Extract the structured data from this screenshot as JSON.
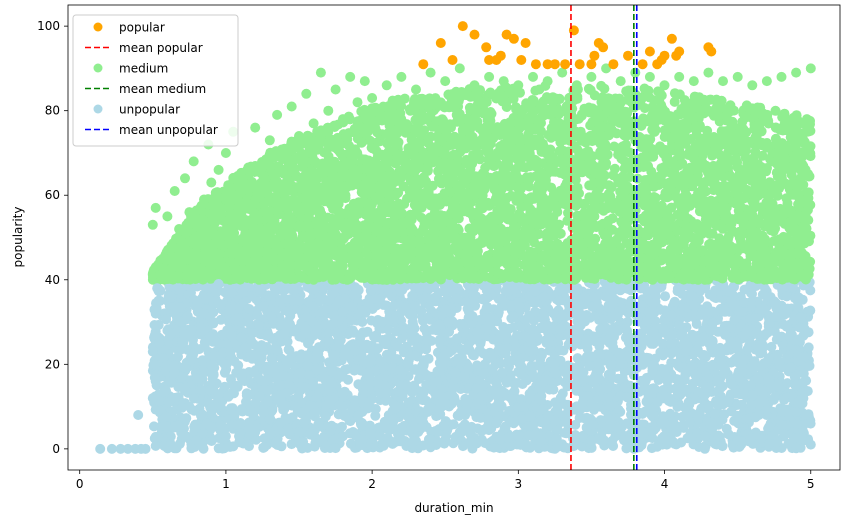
{
  "chart_data": {
    "type": "scatter",
    "xlabel": "duration_min",
    "ylabel": "popularity",
    "xlim": [
      -0.08,
      5.2
    ],
    "ylim": [
      -5,
      105
    ],
    "xticks": [
      "0",
      "1",
      "2",
      "3",
      "4",
      "5"
    ],
    "yticks": [
      "0",
      "20",
      "40",
      "60",
      "80",
      "100"
    ],
    "grid": false,
    "legend_position": "upper-left",
    "series": [
      {
        "name": "popular",
        "kind": "points",
        "color": "#ffa500",
        "points": [
          [
            2.35,
            91
          ],
          [
            2.47,
            96
          ],
          [
            2.55,
            92
          ],
          [
            2.62,
            100
          ],
          [
            2.7,
            98
          ],
          [
            2.78,
            95
          ],
          [
            2.8,
            92
          ],
          [
            2.85,
            92
          ],
          [
            2.88,
            93
          ],
          [
            2.92,
            98
          ],
          [
            2.97,
            97
          ],
          [
            3.02,
            92
          ],
          [
            3.05,
            96
          ],
          [
            3.12,
            91
          ],
          [
            3.2,
            91
          ],
          [
            3.25,
            91
          ],
          [
            3.32,
            91
          ],
          [
            3.38,
            99
          ],
          [
            3.42,
            91
          ],
          [
            3.5,
            91
          ],
          [
            3.52,
            93
          ],
          [
            3.55,
            96
          ],
          [
            3.58,
            95
          ],
          [
            3.65,
            91
          ],
          [
            3.75,
            93
          ],
          [
            3.85,
            91
          ],
          [
            3.9,
            94
          ],
          [
            3.95,
            91
          ],
          [
            3.98,
            92
          ],
          [
            4.0,
            93
          ],
          [
            4.05,
            97
          ],
          [
            4.08,
            93
          ],
          [
            4.1,
            94
          ],
          [
            4.3,
            95
          ],
          [
            4.32,
            94
          ]
        ]
      },
      {
        "name": "mean popular",
        "kind": "vline",
        "color": "#ff0000",
        "x": 3.36
      },
      {
        "name": "medium",
        "kind": "points",
        "color": "#90ee90",
        "points": [
          [
            0.5,
            53
          ],
          [
            0.52,
            57
          ],
          [
            0.55,
            41
          ],
          [
            0.58,
            45
          ],
          [
            0.6,
            55
          ],
          [
            0.62,
            47
          ],
          [
            0.65,
            61
          ],
          [
            0.68,
            52
          ],
          [
            0.7,
            43
          ],
          [
            0.72,
            64
          ],
          [
            0.75,
            56
          ],
          [
            0.78,
            68
          ],
          [
            0.8,
            48
          ],
          [
            0.85,
            59
          ],
          [
            0.88,
            72
          ],
          [
            0.9,
            63
          ],
          [
            0.95,
            66
          ],
          [
            0.98,
            54
          ],
          [
            1.0,
            70
          ],
          [
            1.05,
            75
          ],
          [
            1.1,
            62
          ],
          [
            1.15,
            58
          ],
          [
            1.2,
            76
          ],
          [
            1.25,
            67
          ],
          [
            1.3,
            73
          ],
          [
            1.35,
            79
          ],
          [
            1.4,
            65
          ],
          [
            1.45,
            81
          ],
          [
            1.5,
            74
          ],
          [
            1.55,
            84
          ],
          [
            1.6,
            77
          ],
          [
            1.65,
            89
          ],
          [
            1.7,
            80
          ],
          [
            1.75,
            85
          ],
          [
            1.8,
            78
          ],
          [
            1.85,
            88
          ],
          [
            1.9,
            82
          ],
          [
            1.95,
            87
          ],
          [
            2.0,
            83
          ],
          [
            2.1,
            86
          ],
          [
            2.2,
            88
          ],
          [
            2.3,
            85
          ],
          [
            2.4,
            89
          ],
          [
            2.5,
            87
          ],
          [
            2.6,
            90
          ],
          [
            2.7,
            86
          ],
          [
            2.8,
            88
          ],
          [
            2.9,
            87
          ],
          [
            3.0,
            86
          ],
          [
            3.1,
            88
          ],
          [
            3.2,
            87
          ],
          [
            3.3,
            89
          ],
          [
            3.4,
            86
          ],
          [
            3.5,
            88
          ],
          [
            3.6,
            90
          ],
          [
            3.7,
            87
          ],
          [
            3.8,
            89
          ],
          [
            3.9,
            88
          ],
          [
            4.0,
            86
          ],
          [
            4.1,
            88
          ],
          [
            4.2,
            87
          ],
          [
            4.3,
            89
          ],
          [
            4.4,
            87
          ],
          [
            4.5,
            88
          ],
          [
            4.6,
            86
          ],
          [
            4.7,
            87
          ],
          [
            4.8,
            88
          ],
          [
            4.9,
            89
          ],
          [
            5.0,
            90
          ]
        ],
        "dense_region": {
          "y_range": [
            40,
            90
          ],
          "envelope": [
            [
              0.5,
              40,
              42
            ],
            [
              0.6,
              40,
              47
            ],
            [
              0.7,
              40,
              52
            ],
            [
              0.8,
              40,
              57
            ],
            [
              0.9,
              40,
              60
            ],
            [
              1.0,
              40,
              63
            ],
            [
              1.2,
              40,
              68
            ],
            [
              1.4,
              40,
              72
            ],
            [
              1.6,
              40,
              75
            ],
            [
              1.8,
              40,
              78
            ],
            [
              2.0,
              40,
              81
            ],
            [
              2.2,
              40,
              83
            ],
            [
              2.4,
              40,
              84
            ],
            [
              2.6,
              40,
              85
            ],
            [
              3.0,
              40,
              86
            ],
            [
              3.5,
              40,
              86
            ],
            [
              4.0,
              40,
              85
            ],
            [
              4.5,
              40,
              82
            ],
            [
              4.8,
              40,
              80
            ],
            [
              5.0,
              40,
              78
            ]
          ]
        }
      },
      {
        "name": "mean medium",
        "kind": "vline",
        "color": "#008000",
        "x": 3.79
      },
      {
        "name": "unpopular",
        "kind": "points",
        "color": "#add8e6",
        "points": [
          [
            0.14,
            0
          ],
          [
            0.22,
            0
          ],
          [
            0.28,
            0
          ],
          [
            0.33,
            0
          ],
          [
            0.38,
            0
          ],
          [
            0.42,
            0
          ],
          [
            0.45,
            0
          ],
          [
            0.4,
            8
          ],
          [
            0.5,
            12
          ],
          [
            0.52,
            16
          ],
          [
            0.5,
            23
          ],
          [
            0.52,
            32
          ],
          [
            0.53,
            38
          ],
          [
            0.55,
            35
          ],
          [
            0.6,
            28
          ],
          [
            0.62,
            36
          ],
          [
            0.65,
            18
          ],
          [
            0.7,
            25
          ],
          [
            0.68,
            38
          ],
          [
            0.75,
            10
          ],
          [
            0.8,
            2
          ],
          [
            0.85,
            32
          ],
          [
            0.9,
            5
          ],
          [
            0.95,
            39
          ],
          [
            1.0,
            3
          ],
          [
            1.1,
            6
          ],
          [
            1.2,
            4
          ],
          [
            1.3,
            7
          ],
          [
            1.5,
            4
          ],
          [
            1.8,
            3
          ],
          [
            2.2,
            5
          ],
          [
            2.6,
            4
          ],
          [
            3.0,
            3
          ],
          [
            3.5,
            2
          ],
          [
            4.0,
            3
          ],
          [
            4.5,
            2
          ],
          [
            5.0,
            1
          ]
        ],
        "dense_region": {
          "y_range": [
            0,
            40
          ],
          "envelope": [
            [
              0.5,
              0,
              40
            ],
            [
              1.0,
              0,
              40
            ],
            [
              2.0,
              0,
              40
            ],
            [
              3.0,
              0,
              40
            ],
            [
              4.0,
              0,
              40
            ],
            [
              5.0,
              0,
              40
            ]
          ]
        }
      },
      {
        "name": "mean unpopular",
        "kind": "vline",
        "color": "#0000ff",
        "x": 3.81
      }
    ]
  }
}
